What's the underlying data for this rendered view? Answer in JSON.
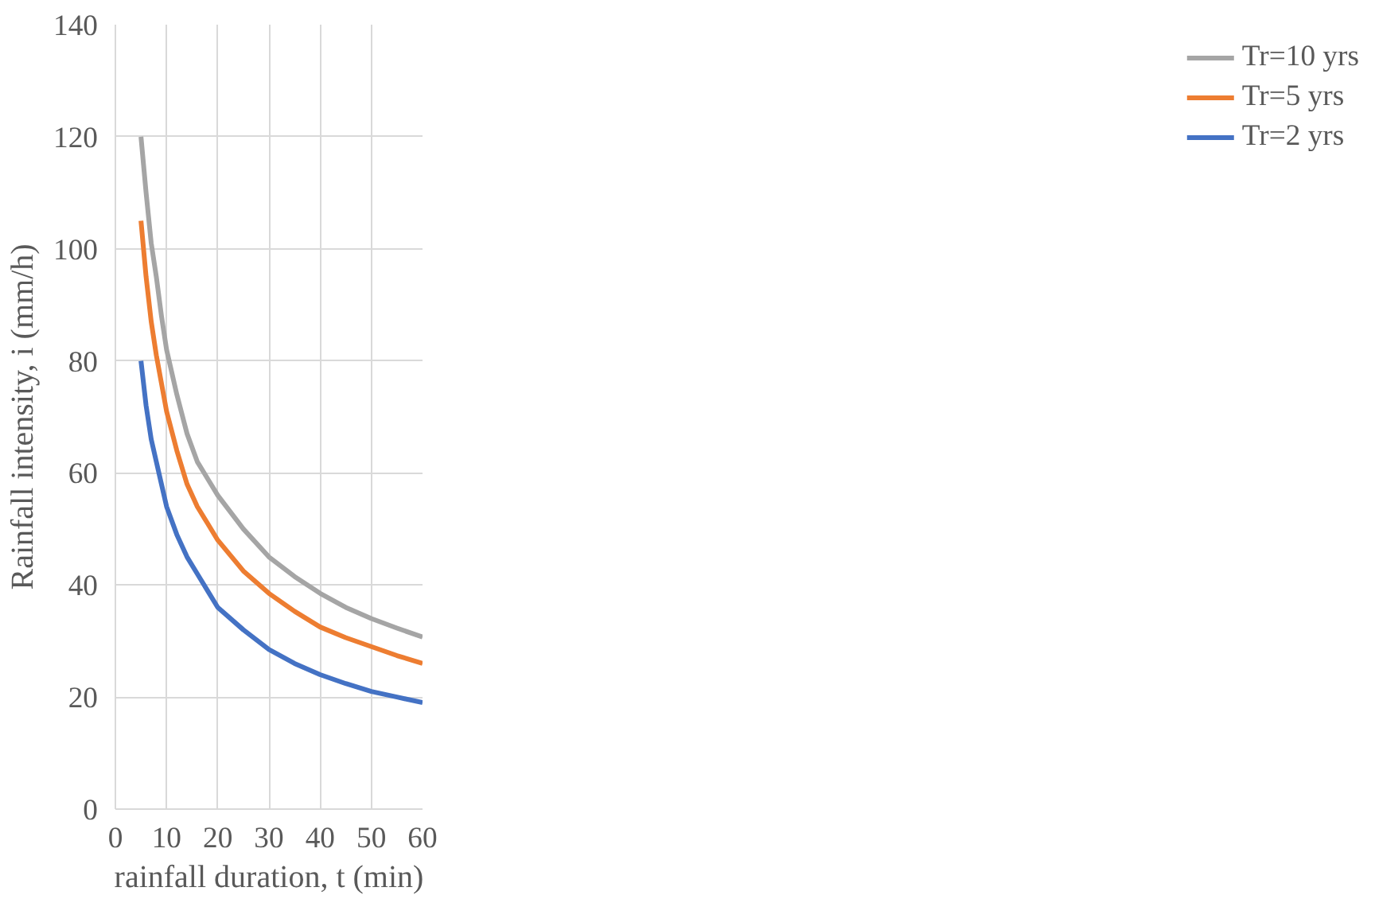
{
  "chart_data": {
    "type": "line",
    "xlabel": "rainfall duration, t (min)",
    "ylabel": "Rainfall intensity, i (mm/h)",
    "x": [
      5,
      6,
      7,
      8,
      9,
      10,
      12,
      14,
      16,
      18,
      20,
      25,
      30,
      35,
      40,
      45,
      50,
      55,
      60
    ],
    "series": [
      {
        "name": "Tr=10 yrs",
        "color": "#a5a5a5",
        "values": [
          120,
          110,
          101,
          95,
          88,
          82,
          74,
          67,
          62,
          59,
          56,
          50,
          45,
          41.5,
          38.5,
          36,
          34,
          32.3,
          30.7
        ]
      },
      {
        "name": "Tr=5 yrs",
        "color": "#ed7d31",
        "values": [
          105,
          95,
          87,
          81,
          76,
          71,
          64,
          58,
          54,
          51,
          48,
          42.5,
          38.5,
          35.3,
          32.5,
          30.6,
          29,
          27.4,
          26
        ]
      },
      {
        "name": "Tr=2 yrs",
        "color": "#4472c4",
        "values": [
          80,
          72,
          66,
          62,
          58,
          54,
          49,
          45,
          42,
          39,
          36,
          32,
          28.5,
          26,
          24,
          22.4,
          21,
          20,
          19
        ]
      }
    ],
    "xlim": [
      0,
      60
    ],
    "ylim": [
      0,
      140
    ],
    "xticks": [
      0,
      10,
      20,
      30,
      40,
      50,
      60
    ],
    "yticks": [
      0,
      20,
      40,
      60,
      80,
      100,
      120,
      140
    ],
    "grid": true,
    "legend": "right",
    "marker": "none",
    "line_style": "solid"
  }
}
